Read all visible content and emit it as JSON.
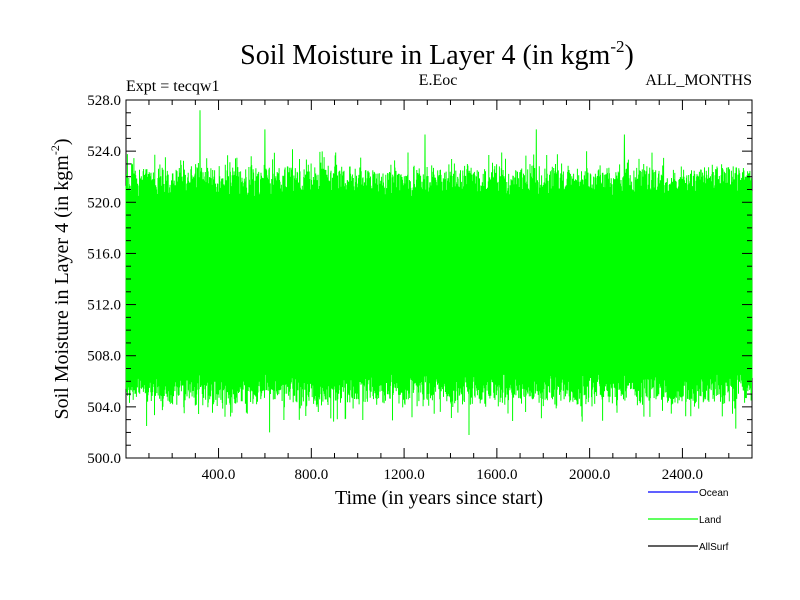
{
  "chart_data": {
    "type": "line",
    "title": "Soil Moisture in Layer 4 (in kgm",
    "title_sup": "-2",
    "title_end": ")",
    "annotations": {
      "left": "Expt = tecqw1",
      "center": "E.Eoc",
      "right": "ALL_MONTHS"
    },
    "xlabel": "Time (in years since start)",
    "ylabel": "Soil Moisture in Layer 4 (in kgm",
    "ylabel_sup": "-2",
    "ylabel_end": ")",
    "xlim": [
      1,
      2700
    ],
    "ylim": [
      500,
      528
    ],
    "x_ticks": [
      400,
      800,
      1200,
      1600,
      2000,
      2400
    ],
    "x_tick_labels": [
      "400.0",
      "800.0",
      "1200.0",
      "1600.0",
      "2000.0",
      "2400.0"
    ],
    "y_ticks": [
      500,
      504,
      508,
      512,
      516,
      520,
      524,
      528
    ],
    "y_tick_labels": [
      "500.0",
      "504.0",
      "508.0",
      "512.0",
      "516.0",
      "520.0",
      "524.0",
      "528.0"
    ],
    "grid": false,
    "legend_position": "bottom-right",
    "series": [
      {
        "name": "Ocean",
        "color": "#0000ff",
        "values": []
      },
      {
        "name": "Land",
        "color": "#00ff00",
        "mean": 514,
        "typical_range": [
          505,
          522
        ],
        "min": 502,
        "max": 527.2,
        "max_at_year": 320,
        "notable_highs": [
          [
            320,
            527.2
          ],
          [
            600,
            525.7
          ],
          [
            1770,
            525.7
          ],
          [
            2150,
            525.3
          ],
          [
            1290,
            525.3
          ]
        ],
        "notable_lows": [
          [
            1480,
            501.8
          ],
          [
            620,
            502.0
          ],
          [
            90,
            502.5
          ],
          [
            2630,
            502.3
          ]
        ]
      },
      {
        "name": "AllSurf",
        "color": "#000000",
        "values": []
      }
    ]
  }
}
